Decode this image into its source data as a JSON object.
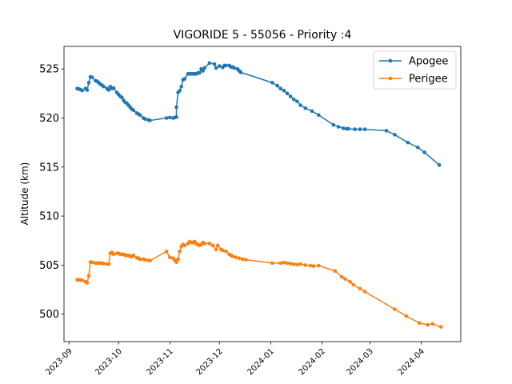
{
  "chart_data": {
    "type": "line",
    "title": "VIGORIDE 5 - 55056 - Priority :4",
    "xlabel": "",
    "ylabel": "Altitude (km)",
    "x_ticks": [
      "2023-09",
      "2023-10",
      "2023-11",
      "2023-12",
      "2024-01",
      "2024-02",
      "2024-03",
      "2024-04"
    ],
    "y_ticks": [
      500,
      505,
      510,
      515,
      520,
      525
    ],
    "xlim": [
      "2023-08-29",
      "2024-04-25"
    ],
    "ylim": [
      497.2,
      527.3
    ],
    "grid": false,
    "legend_position": "top-right",
    "series": [
      {
        "name": "Apogee",
        "color": "#1f77b4",
        "points": [
          [
            "2023-09-06",
            523.0
          ],
          [
            "2023-09-07",
            522.95
          ],
          [
            "2023-09-08",
            522.9
          ],
          [
            "2023-09-09",
            522.8
          ],
          [
            "2023-09-11",
            523.0
          ],
          [
            "2023-09-12",
            522.85
          ],
          [
            "2023-09-13",
            523.6
          ],
          [
            "2023-09-14",
            524.2
          ],
          [
            "2023-09-15",
            524.15
          ],
          [
            "2023-09-17",
            523.8
          ],
          [
            "2023-09-18",
            523.75
          ],
          [
            "2023-09-19",
            523.6
          ],
          [
            "2023-09-20",
            523.45
          ],
          [
            "2023-09-21",
            523.35
          ],
          [
            "2023-09-22",
            523.2
          ],
          [
            "2023-09-24",
            523.0
          ],
          [
            "2023-09-25",
            522.85
          ],
          [
            "2023-09-26",
            523.2
          ],
          [
            "2023-09-27",
            523.0
          ],
          [
            "2023-09-28",
            523.05
          ],
          [
            "2023-09-30",
            522.6
          ],
          [
            "2023-10-01",
            522.4
          ],
          [
            "2023-10-02",
            522.2
          ],
          [
            "2023-10-03",
            522.1
          ],
          [
            "2023-10-04",
            521.8
          ],
          [
            "2023-10-05",
            521.6
          ],
          [
            "2023-10-06",
            521.5
          ],
          [
            "2023-10-07",
            521.3
          ],
          [
            "2023-10-08",
            521.1
          ],
          [
            "2023-10-09",
            520.9
          ],
          [
            "2023-10-10",
            520.8
          ],
          [
            "2023-10-12",
            520.5
          ],
          [
            "2023-10-13",
            520.4
          ],
          [
            "2023-10-14",
            520.3
          ],
          [
            "2023-10-16",
            520.0
          ],
          [
            "2023-10-17",
            519.9
          ],
          [
            "2023-10-19",
            519.8
          ],
          [
            "2023-10-20",
            519.75
          ],
          [
            "2023-10-30",
            520.0
          ],
          [
            "2023-11-01",
            520.05
          ],
          [
            "2023-11-03",
            520.0
          ],
          [
            "2023-11-04",
            520.05
          ],
          [
            "2023-11-05",
            520.1
          ],
          [
            "2023-11-05",
            521.1
          ],
          [
            "2023-11-06",
            522.6
          ],
          [
            "2023-11-07",
            522.8
          ],
          [
            "2023-11-08",
            523.2
          ],
          [
            "2023-11-09",
            523.9
          ],
          [
            "2023-11-10",
            524.0
          ],
          [
            "2023-11-12",
            524.5
          ],
          [
            "2023-11-13",
            524.5
          ],
          [
            "2023-11-14",
            524.5
          ],
          [
            "2023-11-15",
            524.5
          ],
          [
            "2023-11-16",
            524.5
          ],
          [
            "2023-11-17",
            524.5
          ],
          [
            "2023-11-18",
            524.6
          ],
          [
            "2023-11-19",
            524.6
          ],
          [
            "2023-11-20",
            525.0
          ],
          [
            "2023-11-21",
            524.8
          ],
          [
            "2023-11-22",
            525.1
          ],
          [
            "2023-11-25",
            525.6
          ],
          [
            "2023-11-28",
            525.5
          ],
          [
            "2023-11-29",
            525.1
          ],
          [
            "2023-12-01",
            525.3
          ],
          [
            "2023-12-03",
            525.15
          ],
          [
            "2023-12-04",
            525.35
          ],
          [
            "2023-12-05",
            525.35
          ],
          [
            "2023-12-07",
            525.35
          ],
          [
            "2023-12-08",
            525.2
          ],
          [
            "2023-12-09",
            525.2
          ],
          [
            "2023-12-10",
            525.1
          ],
          [
            "2023-12-12",
            525.0
          ],
          [
            "2023-12-13",
            524.8
          ],
          [
            "2023-12-14",
            524.65
          ],
          [
            "2024-01-02",
            523.6
          ],
          [
            "2024-01-05",
            523.3
          ],
          [
            "2024-01-07",
            523.0
          ],
          [
            "2024-01-09",
            522.8
          ],
          [
            "2024-01-11",
            522.5
          ],
          [
            "2024-01-13",
            522.2
          ],
          [
            "2024-01-15",
            521.9
          ],
          [
            "2024-01-17",
            521.7
          ],
          [
            "2024-01-19",
            521.3
          ],
          [
            "2024-01-22",
            521.0
          ],
          [
            "2024-01-26",
            520.7
          ],
          [
            "2024-01-30",
            520.3
          ],
          [
            "2024-02-08",
            519.3
          ],
          [
            "2024-02-11",
            519.1
          ],
          [
            "2024-02-14",
            518.95
          ],
          [
            "2024-02-16",
            518.9
          ],
          [
            "2024-02-17",
            518.9
          ],
          [
            "2024-02-21",
            518.85
          ],
          [
            "2024-02-24",
            518.85
          ],
          [
            "2024-02-27",
            518.85
          ],
          [
            "2024-03-11",
            518.7
          ],
          [
            "2024-03-16",
            518.3
          ],
          [
            "2024-03-24",
            517.5
          ],
          [
            "2024-03-30",
            517.0
          ],
          [
            "2024-04-03",
            516.5
          ],
          [
            "2024-04-12",
            515.2
          ]
        ]
      },
      {
        "name": "Perigee",
        "color": "#ff7f0e",
        "points": [
          [
            "2023-09-06",
            503.5
          ],
          [
            "2023-09-07",
            503.5
          ],
          [
            "2023-09-08",
            503.5
          ],
          [
            "2023-09-09",
            503.45
          ],
          [
            "2023-09-11",
            503.3
          ],
          [
            "2023-09-12",
            503.2
          ],
          [
            "2023-09-13",
            503.9
          ],
          [
            "2023-09-14",
            505.3
          ],
          [
            "2023-09-15",
            505.3
          ],
          [
            "2023-09-17",
            505.2
          ],
          [
            "2023-09-18",
            505.2
          ],
          [
            "2023-09-19",
            505.2
          ],
          [
            "2023-09-20",
            505.2
          ],
          [
            "2023-09-21",
            505.2
          ],
          [
            "2023-09-22",
            505.15
          ],
          [
            "2023-09-24",
            505.1
          ],
          [
            "2023-09-25",
            505.1
          ],
          [
            "2023-09-26",
            506.2
          ],
          [
            "2023-09-27",
            506.3
          ],
          [
            "2023-09-28",
            506.1
          ],
          [
            "2023-09-30",
            506.2
          ],
          [
            "2023-10-01",
            506.2
          ],
          [
            "2023-10-02",
            506.1
          ],
          [
            "2023-10-03",
            506.1
          ],
          [
            "2023-10-04",
            506.1
          ],
          [
            "2023-10-05",
            506.0
          ],
          [
            "2023-10-06",
            506.0
          ],
          [
            "2023-10-07",
            506.0
          ],
          [
            "2023-10-08",
            505.9
          ],
          [
            "2023-10-09",
            505.85
          ],
          [
            "2023-10-10",
            506.0
          ],
          [
            "2023-10-12",
            505.75
          ],
          [
            "2023-10-13",
            505.7
          ],
          [
            "2023-10-14",
            505.6
          ],
          [
            "2023-10-16",
            505.6
          ],
          [
            "2023-10-17",
            505.55
          ],
          [
            "2023-10-19",
            505.5
          ],
          [
            "2023-10-20",
            505.45
          ],
          [
            "2023-10-30",
            506.4
          ],
          [
            "2023-11-01",
            505.8
          ],
          [
            "2023-11-03",
            505.7
          ],
          [
            "2023-11-04",
            505.5
          ],
          [
            "2023-11-05",
            505.3
          ],
          [
            "2023-11-06",
            505.6
          ],
          [
            "2023-11-07",
            506.4
          ],
          [
            "2023-11-08",
            506.9
          ],
          [
            "2023-11-09",
            507.1
          ],
          [
            "2023-11-10",
            507.0
          ],
          [
            "2023-11-12",
            507.2
          ],
          [
            "2023-11-13",
            507.4
          ],
          [
            "2023-11-14",
            507.3
          ],
          [
            "2023-11-15",
            507.3
          ],
          [
            "2023-11-16",
            507.4
          ],
          [
            "2023-11-17",
            507.2
          ],
          [
            "2023-11-18",
            507.1
          ],
          [
            "2023-11-19",
            507.0
          ],
          [
            "2023-11-20",
            507.1
          ],
          [
            "2023-11-21",
            507.3
          ],
          [
            "2023-11-22",
            507.2
          ],
          [
            "2023-11-25",
            507.2
          ],
          [
            "2023-11-27",
            507.0
          ],
          [
            "2023-11-29",
            506.6
          ],
          [
            "2023-11-30",
            507.0
          ],
          [
            "2023-12-02",
            506.6
          ],
          [
            "2023-12-03",
            506.5
          ],
          [
            "2023-12-05",
            506.4
          ],
          [
            "2023-12-07",
            506.1
          ],
          [
            "2023-12-08",
            506.0
          ],
          [
            "2023-12-09",
            505.9
          ],
          [
            "2023-12-11",
            505.8
          ],
          [
            "2023-12-13",
            505.7
          ],
          [
            "2023-12-15",
            505.6
          ],
          [
            "2023-12-17",
            505.55
          ],
          [
            "2024-01-02",
            505.2
          ],
          [
            "2024-01-07",
            505.2
          ],
          [
            "2024-01-09",
            505.25
          ],
          [
            "2024-01-11",
            505.2
          ],
          [
            "2024-01-13",
            505.15
          ],
          [
            "2024-01-15",
            505.1
          ],
          [
            "2024-01-17",
            505.05
          ],
          [
            "2024-01-19",
            505.1
          ],
          [
            "2024-01-22",
            505.0
          ],
          [
            "2024-01-25",
            504.95
          ],
          [
            "2024-01-27",
            504.9
          ],
          [
            "2024-01-30",
            504.95
          ],
          [
            "2024-02-09",
            504.4
          ],
          [
            "2024-02-13",
            503.8
          ],
          [
            "2024-02-15",
            503.6
          ],
          [
            "2024-02-18",
            503.3
          ],
          [
            "2024-02-20",
            503.0
          ],
          [
            "2024-02-24",
            502.6
          ],
          [
            "2024-02-27",
            502.3
          ],
          [
            "2024-03-16",
            500.5
          ],
          [
            "2024-03-23",
            499.8
          ],
          [
            "2024-03-31",
            499.1
          ],
          [
            "2024-04-05",
            498.9
          ],
          [
            "2024-04-08",
            499.0
          ],
          [
            "2024-04-13",
            498.7
          ]
        ]
      }
    ]
  }
}
